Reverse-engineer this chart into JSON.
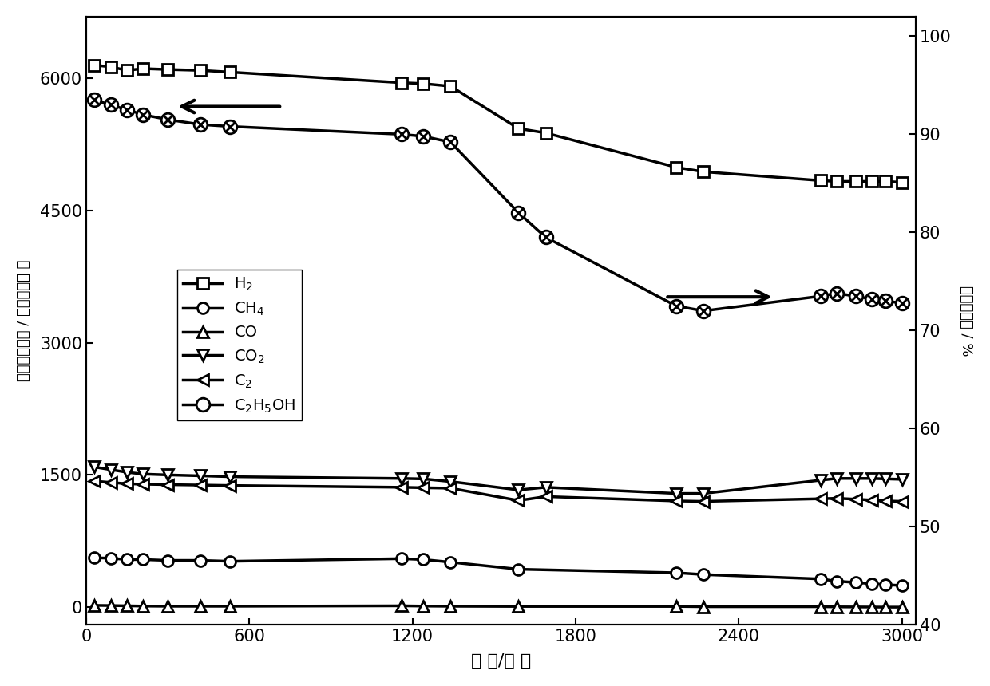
{
  "xlabel": "时 间/分 钟",
  "ylabel_left": "气体产生速率 / 微摩尔每分 钟",
  "ylabel_right": "乙醇转化率 / %",
  "xlim": [
    0,
    3050
  ],
  "ylim_left": [
    -200,
    6700
  ],
  "ylim_right": [
    40,
    102
  ],
  "xticks": [
    0,
    600,
    1200,
    1800,
    2400,
    3000
  ],
  "yticks_left": [
    0,
    1500,
    3000,
    4500,
    6000
  ],
  "yticks_right": [
    40,
    50,
    60,
    70,
    80,
    90,
    100
  ],
  "H2_x": [
    30,
    90,
    150,
    210,
    300,
    420,
    530,
    1160,
    1240,
    1340,
    1590,
    1690,
    2170,
    2270,
    2700,
    2760,
    2830,
    2890,
    2940,
    3000
  ],
  "H2_y": [
    6150,
    6130,
    6090,
    6110,
    6100,
    6090,
    6070,
    5950,
    5940,
    5910,
    5430,
    5380,
    4990,
    4940,
    4840,
    4830,
    4830,
    4830,
    4830,
    4820
  ],
  "CH4_x": [
    30,
    90,
    150,
    210,
    300,
    420,
    530,
    1160,
    1240,
    1340,
    1590,
    2170,
    2270,
    2700,
    2760,
    2830,
    2890,
    2940,
    3000
  ],
  "CH4_y": [
    560,
    555,
    540,
    540,
    530,
    530,
    520,
    550,
    540,
    510,
    430,
    390,
    370,
    320,
    295,
    280,
    265,
    255,
    245
  ],
  "CO_x": [
    30,
    90,
    150,
    210,
    300,
    420,
    530,
    1160,
    1240,
    1340,
    1590,
    2170,
    2270,
    2700,
    2760,
    2830,
    2890,
    2940,
    3000
  ],
  "CO_y": [
    20,
    18,
    15,
    12,
    10,
    10,
    10,
    15,
    12,
    10,
    8,
    8,
    5,
    5,
    3,
    2,
    1,
    0,
    0
  ],
  "CO2_x": [
    30,
    90,
    150,
    210,
    300,
    420,
    530,
    1160,
    1240,
    1340,
    1590,
    1690,
    2170,
    2270,
    2700,
    2760,
    2830,
    2890,
    2940,
    3000
  ],
  "CO2_y": [
    1590,
    1560,
    1530,
    1510,
    1500,
    1490,
    1480,
    1460,
    1455,
    1425,
    1330,
    1360,
    1290,
    1290,
    1440,
    1460,
    1460,
    1460,
    1455,
    1450
  ],
  "C2_x": [
    30,
    90,
    150,
    210,
    300,
    420,
    530,
    1160,
    1240,
    1340,
    1590,
    1690,
    2170,
    2270,
    2700,
    2760,
    2830,
    2890,
    2940,
    3000
  ],
  "C2_y": [
    1430,
    1415,
    1400,
    1395,
    1390,
    1385,
    1380,
    1360,
    1355,
    1350,
    1210,
    1255,
    1205,
    1200,
    1230,
    1235,
    1225,
    1215,
    1205,
    1200
  ],
  "EtOH_x": [
    30,
    90,
    150,
    210,
    300,
    420,
    530,
    1160,
    1240,
    1340,
    1590,
    1690,
    2170,
    2270,
    2700,
    2760,
    2830,
    2890,
    2940,
    3000
  ],
  "EtOH_pct": [
    93.5,
    93.0,
    92.5,
    92.0,
    91.5,
    91.0,
    90.8,
    90.0,
    89.8,
    89.2,
    82.0,
    79.5,
    72.5,
    72.0,
    73.5,
    73.8,
    73.5,
    73.2,
    73.0,
    72.8
  ],
  "background_color": "#ffffff",
  "line_color": "#000000",
  "linewidth": 2.5,
  "markersize": 10
}
